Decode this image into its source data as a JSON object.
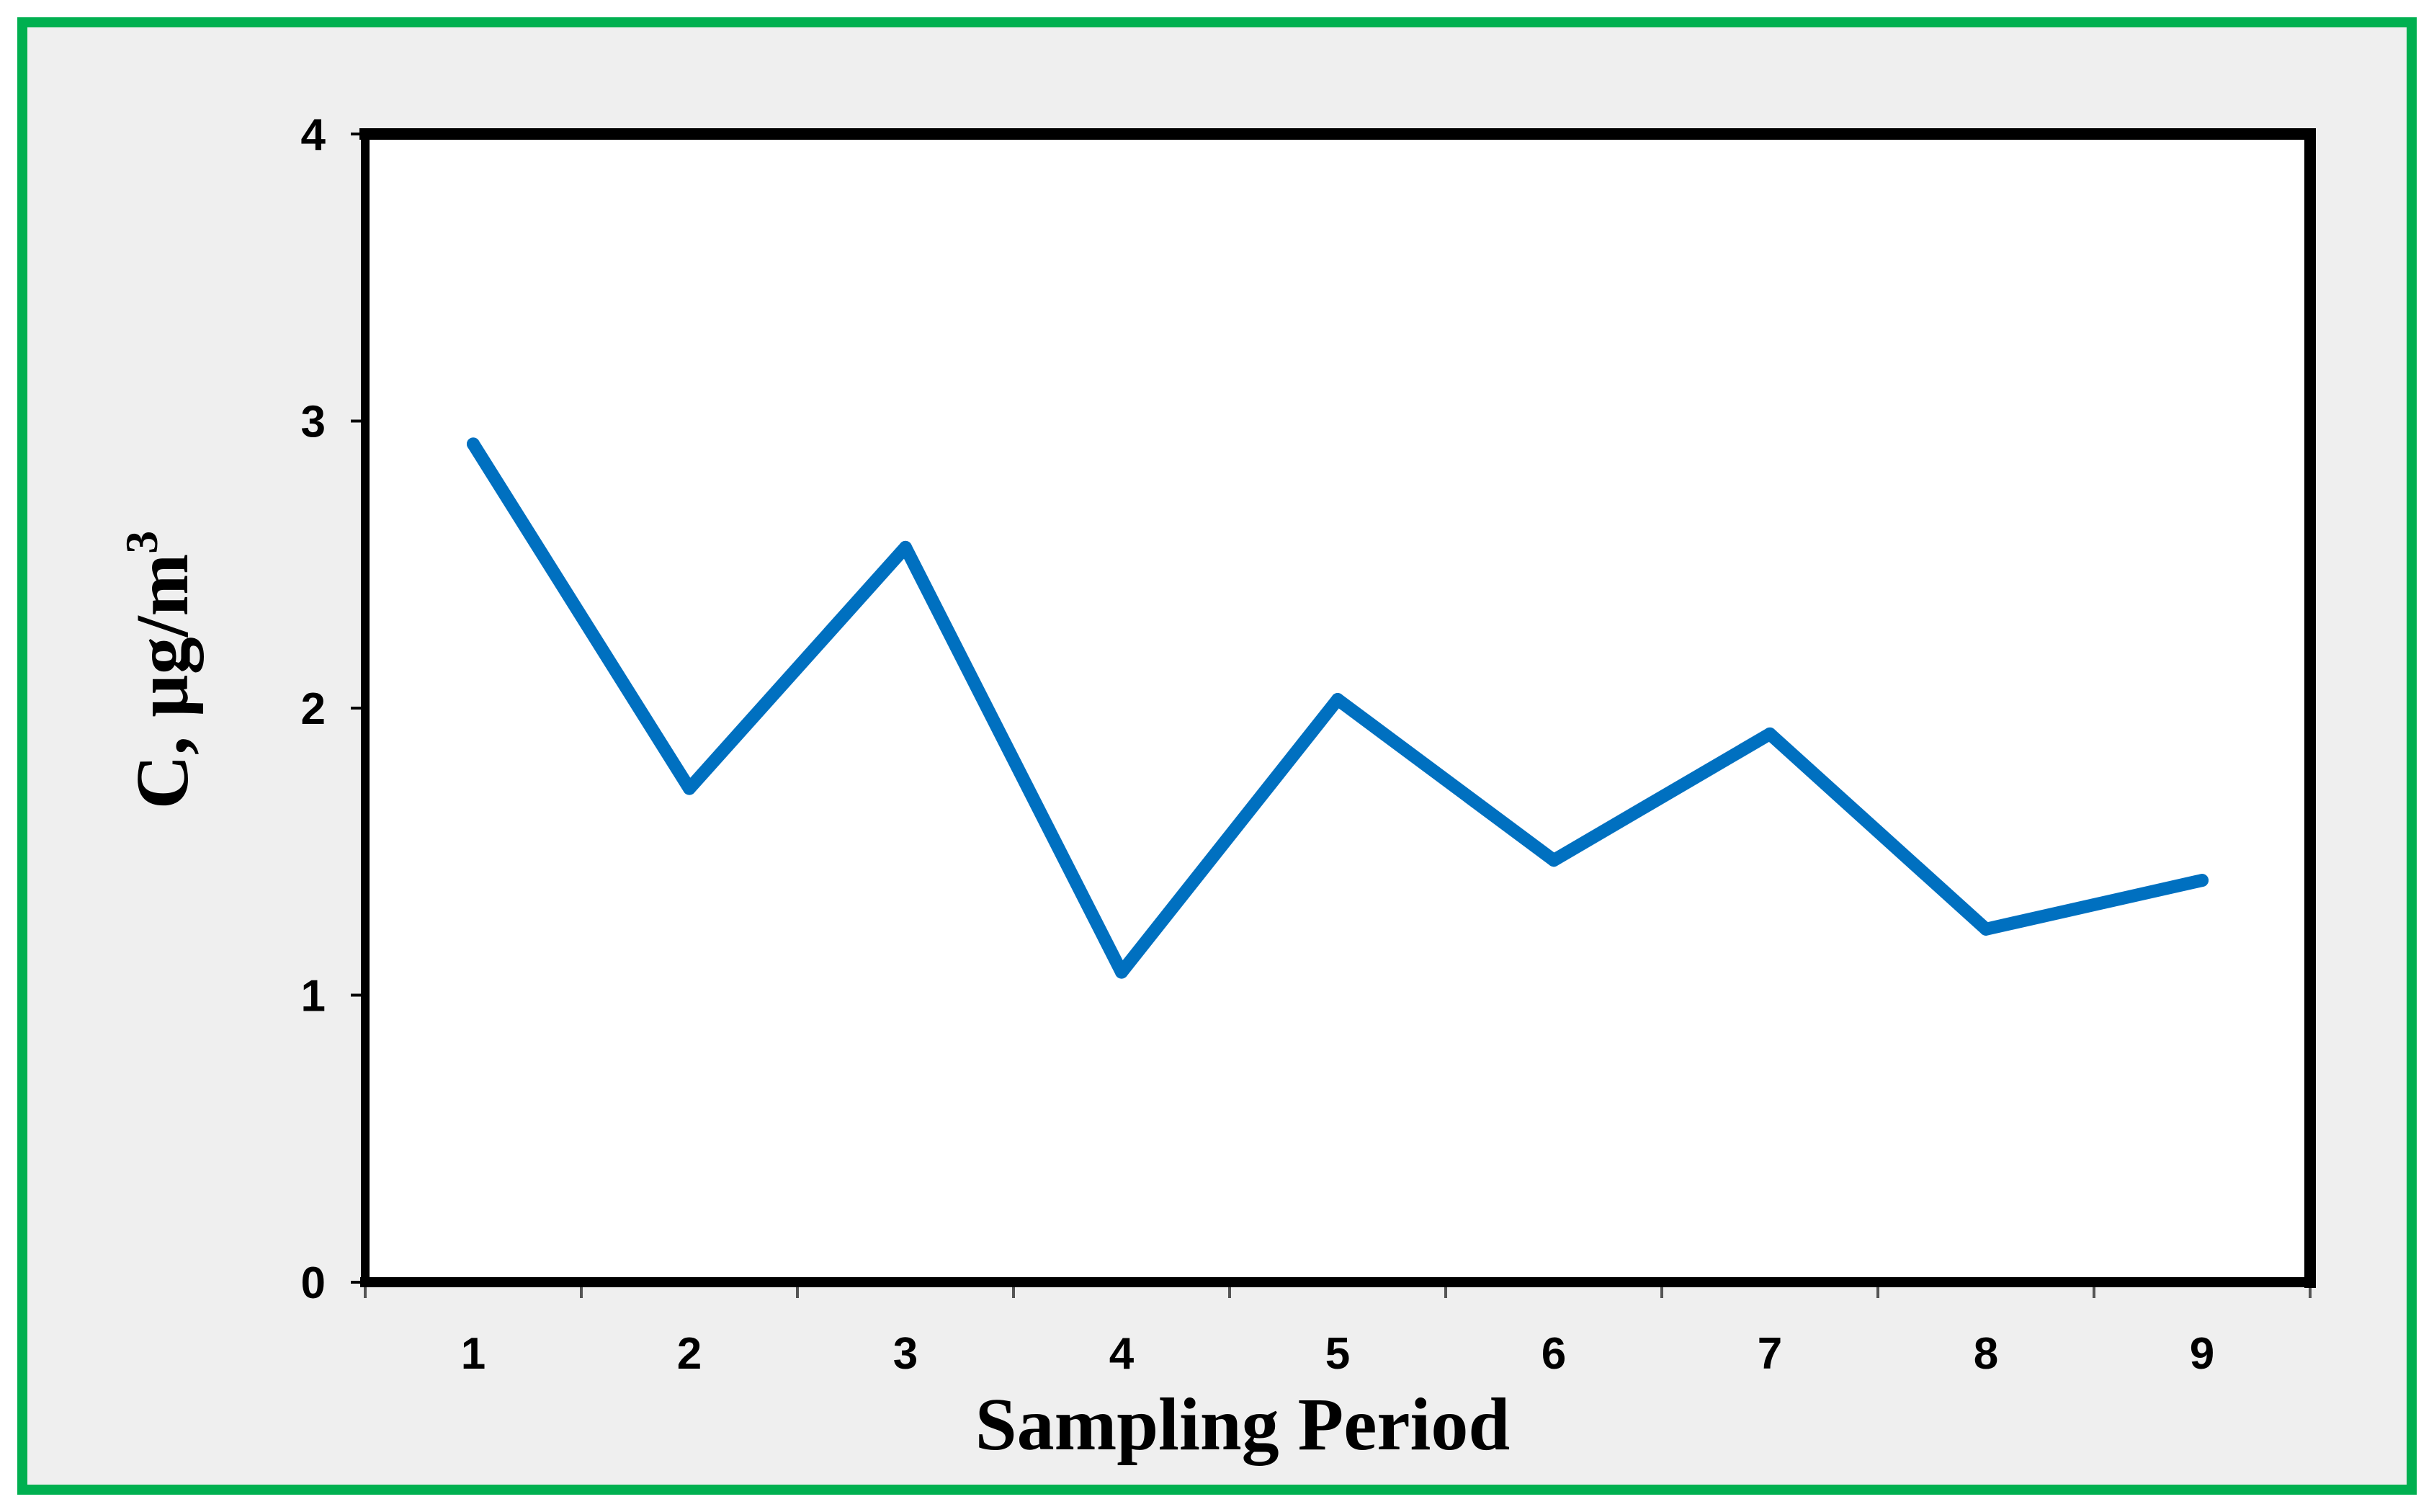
{
  "chart_data": {
    "type": "line",
    "xlabel": "Sampling Period",
    "ylabel": {
      "base": "C, µg/m",
      "superscript": "3"
    },
    "x": [
      "1",
      "2",
      "3",
      "4",
      "5",
      "6",
      "7",
      "8",
      "9"
    ],
    "series": [
      {
        "values": [
          2.92,
          1.72,
          2.56,
          1.08,
          2.03,
          1.47,
          1.91,
          1.23,
          1.4
        ]
      }
    ],
    "yticks": [
      "0",
      "1",
      "2",
      "3",
      "4"
    ],
    "ylim": [
      0,
      4
    ],
    "grid": false,
    "legend": "none",
    "colors": {
      "line": "#0070C0",
      "plot_background": "#FFFFFF",
      "figure_background": "#EFEFEF",
      "outer_border": "#00B050",
      "plot_border": "#000000"
    }
  }
}
